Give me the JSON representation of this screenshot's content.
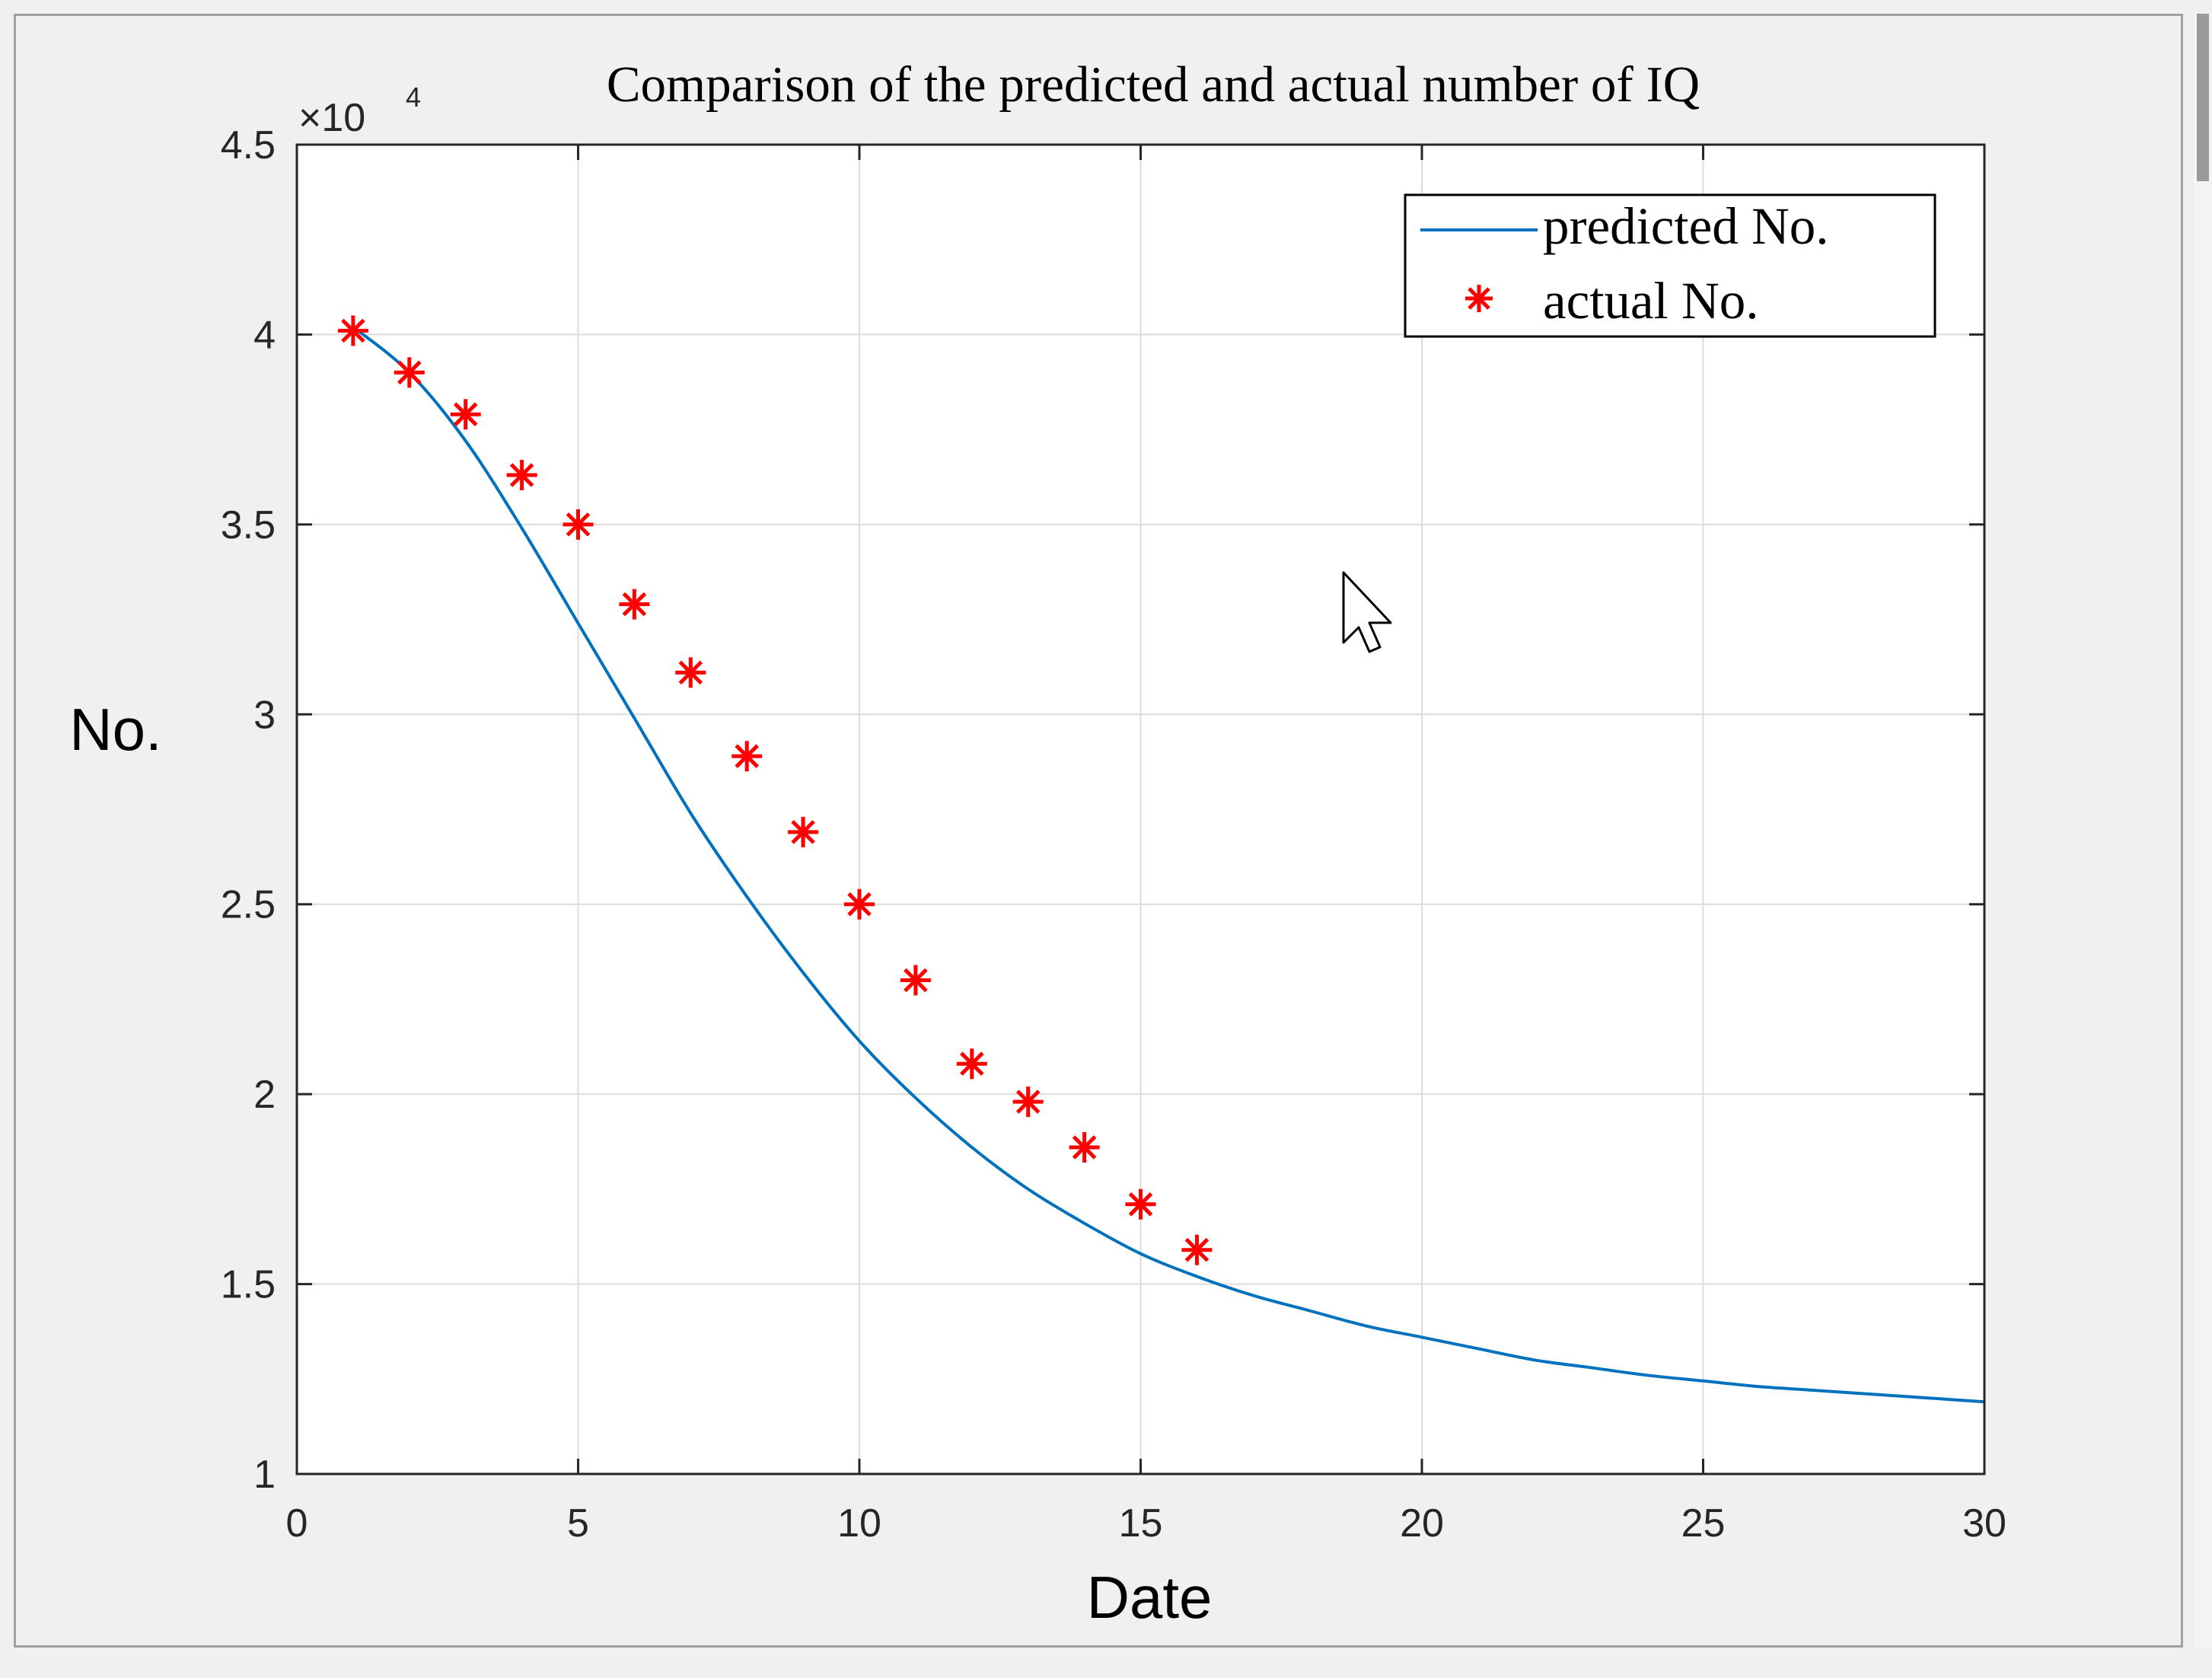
{
  "chart_data": {
    "type": "line+scatter",
    "title": "Comparison of the predicted and actual number of IQ",
    "xlabel": "Date",
    "ylabel": "No.",
    "xlim": [
      0,
      30
    ],
    "ylim": [
      1,
      4.5
    ],
    "y_multiplier": "×10",
    "y_multiplier_exp": "4",
    "grid": true,
    "legend_position": "top-right",
    "x_ticks": [
      "0",
      "5",
      "10",
      "15",
      "20",
      "25",
      "30"
    ],
    "y_ticks": [
      "1",
      "1.5",
      "2",
      "2.5",
      "3",
      "3.5",
      "4",
      "4.5"
    ],
    "x_tick_values": [
      0,
      5,
      10,
      15,
      20,
      25,
      30
    ],
    "y_tick_values": [
      1,
      1.5,
      2,
      2.5,
      3,
      3.5,
      4,
      4.5
    ],
    "series": [
      {
        "name": "predicted No.",
        "kind": "line",
        "color": "#0072BD",
        "x": [
          1,
          2,
          3,
          4,
          5,
          6,
          7,
          8,
          9,
          10,
          11,
          12,
          13,
          14,
          15,
          16,
          17,
          18,
          19,
          20,
          21,
          22,
          23,
          24,
          25,
          26,
          27,
          28,
          29,
          30
        ],
        "y": [
          4.02,
          3.9,
          3.72,
          3.49,
          3.24,
          2.99,
          2.74,
          2.52,
          2.32,
          2.14,
          1.99,
          1.86,
          1.75,
          1.66,
          1.58,
          1.52,
          1.47,
          1.43,
          1.39,
          1.36,
          1.33,
          1.3,
          1.28,
          1.26,
          1.245,
          1.23,
          1.22,
          1.21,
          1.2,
          1.19
        ]
      },
      {
        "name": "actual No.",
        "kind": "scatter",
        "marker": "*",
        "color": "#FF0000",
        "x": [
          1,
          2,
          3,
          4,
          5,
          6,
          7,
          8,
          9,
          10,
          11,
          12,
          13,
          14,
          15,
          16
        ],
        "y": [
          4.01,
          3.9,
          3.79,
          3.63,
          3.5,
          3.29,
          3.11,
          2.89,
          2.69,
          2.5,
          2.3,
          2.08,
          1.98,
          1.86,
          1.71,
          1.59
        ]
      }
    ]
  },
  "colors": {
    "axes_background": "#ffffff",
    "grid": "#dcdcdc",
    "axis": "#262626"
  }
}
